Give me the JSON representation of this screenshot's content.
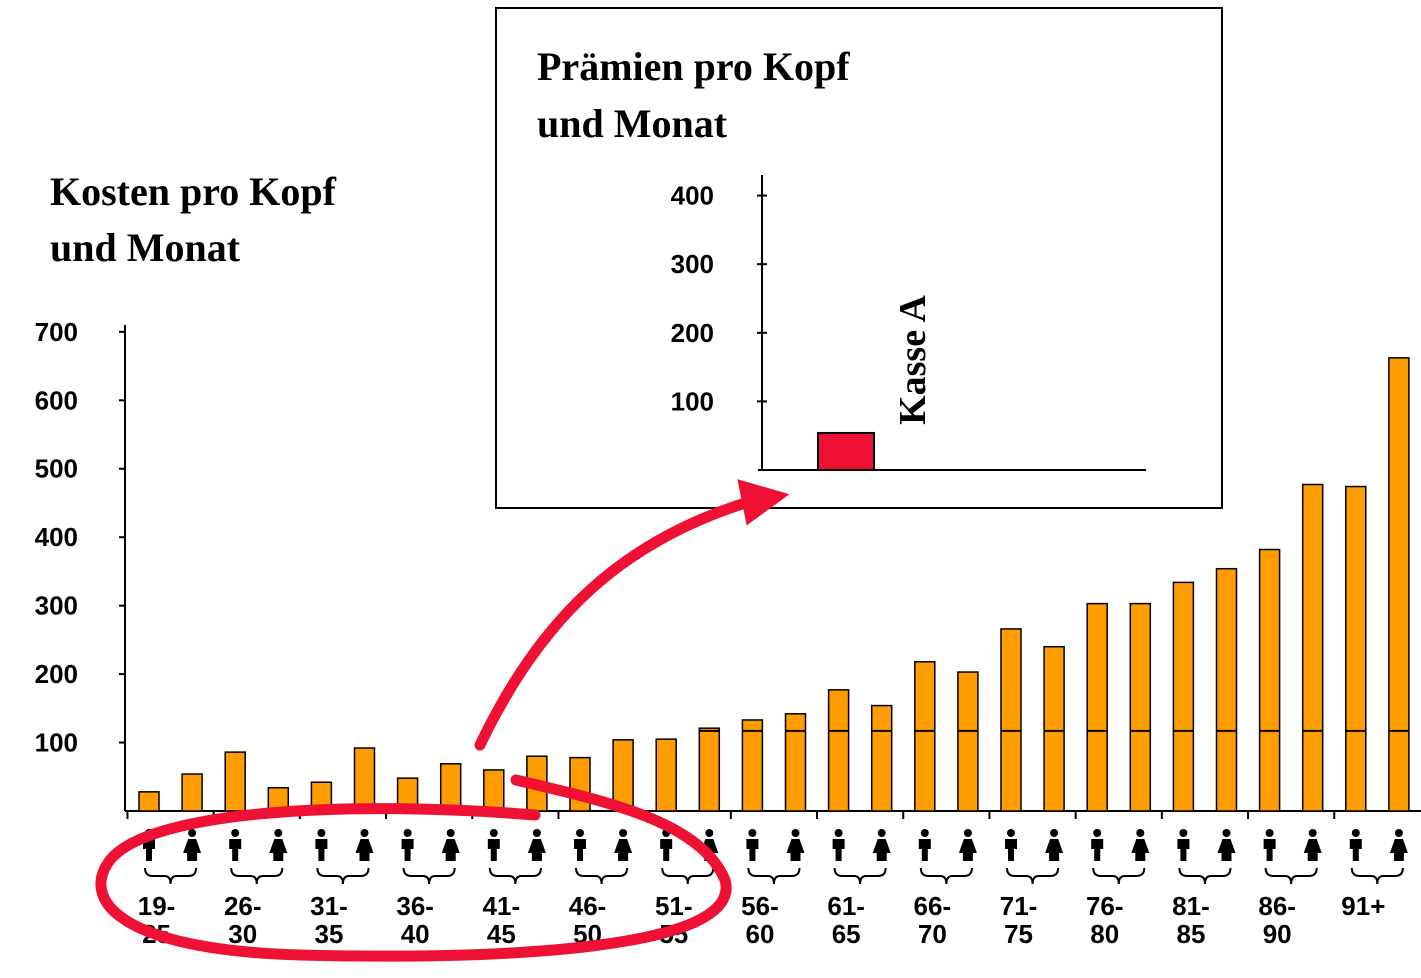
{
  "chart_data": [
    {
      "type": "bar",
      "title": [
        "Kosten pro Kopf",
        "und Monat"
      ],
      "categories": [
        [
          "19-",
          "25"
        ],
        [
          "26-",
          "30"
        ],
        [
          "31-",
          "35"
        ],
        [
          "36-",
          "40"
        ],
        [
          "41-",
          "45"
        ],
        [
          "46-",
          "50"
        ],
        [
          "51-",
          "55"
        ],
        [
          "56-",
          "60"
        ],
        [
          "61-",
          "65"
        ],
        [
          "66-",
          "70"
        ],
        [
          "71-",
          "75"
        ],
        [
          "76-",
          "80"
        ],
        [
          "81-",
          "85"
        ],
        [
          "86-",
          "90"
        ],
        [
          "91+"
        ]
      ],
      "series": [
        {
          "color": "#ff9c00",
          "values": [
            28,
            86,
            42,
            48,
            60,
            78,
            105,
            133,
            177,
            218,
            266,
            303,
            334,
            382,
            474
          ]
        },
        {
          "color": "#ff9c00",
          "values": [
            54,
            34,
            92,
            69,
            80,
            104,
            121,
            142,
            154,
            203,
            240,
            303,
            354,
            477,
            662
          ]
        }
      ],
      "premium_level": 117,
      "ylim": [
        0,
        710
      ],
      "yticks": [
        100,
        200,
        300,
        400,
        500,
        600,
        700
      ]
    },
    {
      "type": "bar",
      "title": [
        "Prämien pro Kopf",
        "und Monat"
      ],
      "categories": [
        "Kasse A"
      ],
      "values": [
        54
      ],
      "color": "#ee1133",
      "ylim": [
        0,
        430
      ],
      "yticks": [
        100,
        200,
        300,
        400
      ]
    }
  ]
}
